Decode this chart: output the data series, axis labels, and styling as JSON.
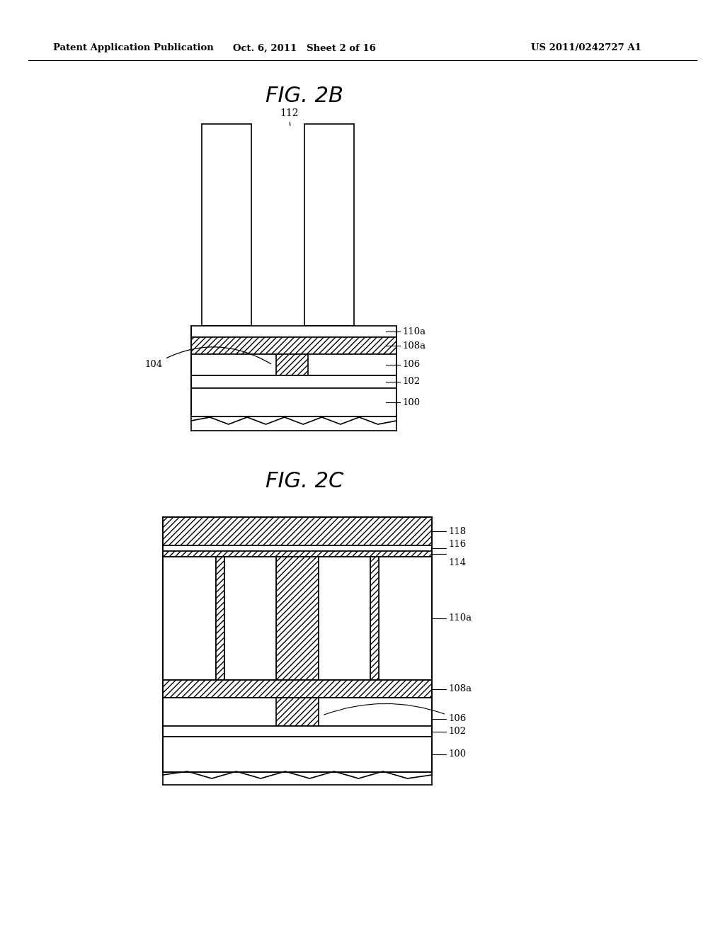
{
  "bg_color": "#ffffff",
  "header_left": "Patent Application Publication",
  "header_mid": "Oct. 6, 2011   Sheet 2 of 16",
  "header_right": "US 2011/0242727 A1",
  "fig2b_title": "FIG. 2B",
  "fig2c_title": "FIG. 2C",
  "lw": 1.2
}
